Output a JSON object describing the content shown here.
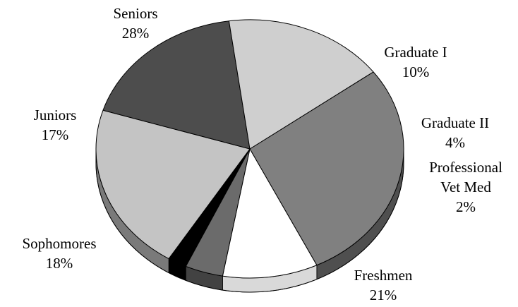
{
  "chart_data": {
    "type": "pie",
    "style": "3d-tilted",
    "slices": [
      {
        "label": "Seniors",
        "value_label": "28%",
        "value": 28,
        "color": "#808080"
      },
      {
        "label": "Graduate I",
        "value_label": "10%",
        "value": 10,
        "color": "#ffffff"
      },
      {
        "label": "Graduate II",
        "value_label": "4%",
        "value": 4,
        "color": "#6b6b6b"
      },
      {
        "label": [
          "Professional",
          "Vet Med"
        ],
        "value_label": "2%",
        "value": 2,
        "color": "#000000"
      },
      {
        "label": "Freshmen",
        "value_label": "21%",
        "value": 21,
        "color": "#c4c4c4"
      },
      {
        "label": "Sophomores",
        "value_label": "18%",
        "value": 18,
        "color": "#4d4d4d"
      },
      {
        "label": "Juniors",
        "value_label": "17%",
        "value": 17,
        "color": "#cfcfcf"
      }
    ]
  }
}
